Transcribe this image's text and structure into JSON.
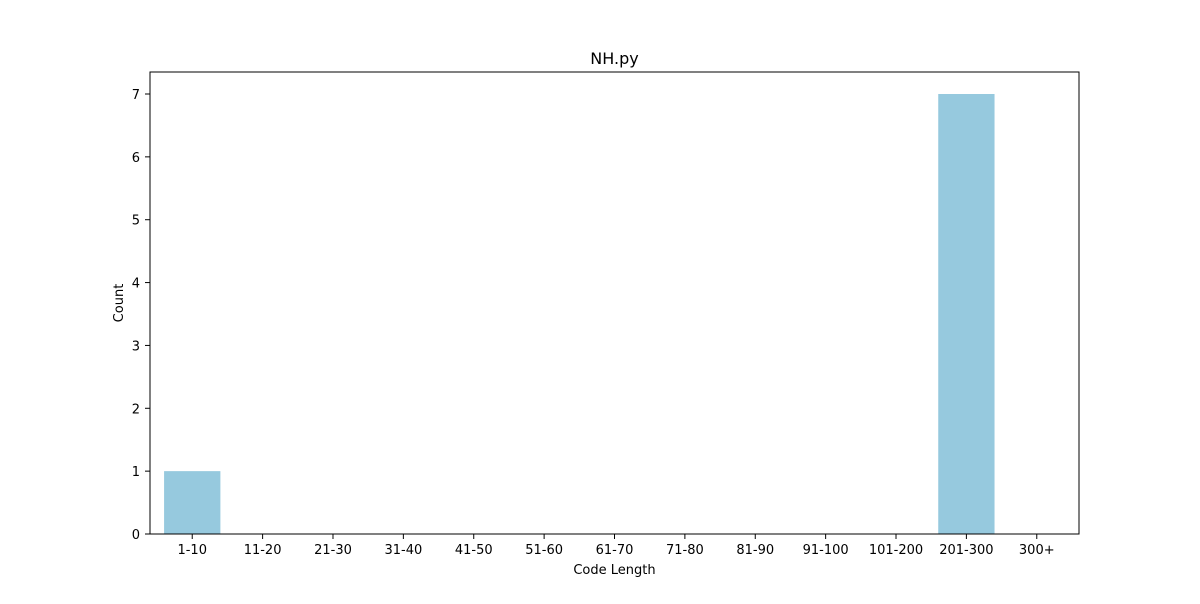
{
  "chart_data": {
    "type": "bar",
    "title": "NH.py",
    "xlabel": "Code Length",
    "ylabel": "Count",
    "categories": [
      "1-10",
      "11-20",
      "21-30",
      "31-40",
      "41-50",
      "51-60",
      "61-70",
      "71-80",
      "81-90",
      "91-100",
      "101-200",
      "201-300",
      "300+"
    ],
    "values": [
      1,
      0,
      0,
      0,
      0,
      0,
      0,
      0,
      0,
      0,
      0,
      7,
      0
    ],
    "ylim": [
      0,
      7.35
    ],
    "yticks": [
      0,
      1,
      2,
      3,
      4,
      5,
      6,
      7
    ],
    "grid": false,
    "legend": "none",
    "bar_color": "#96c9de"
  }
}
